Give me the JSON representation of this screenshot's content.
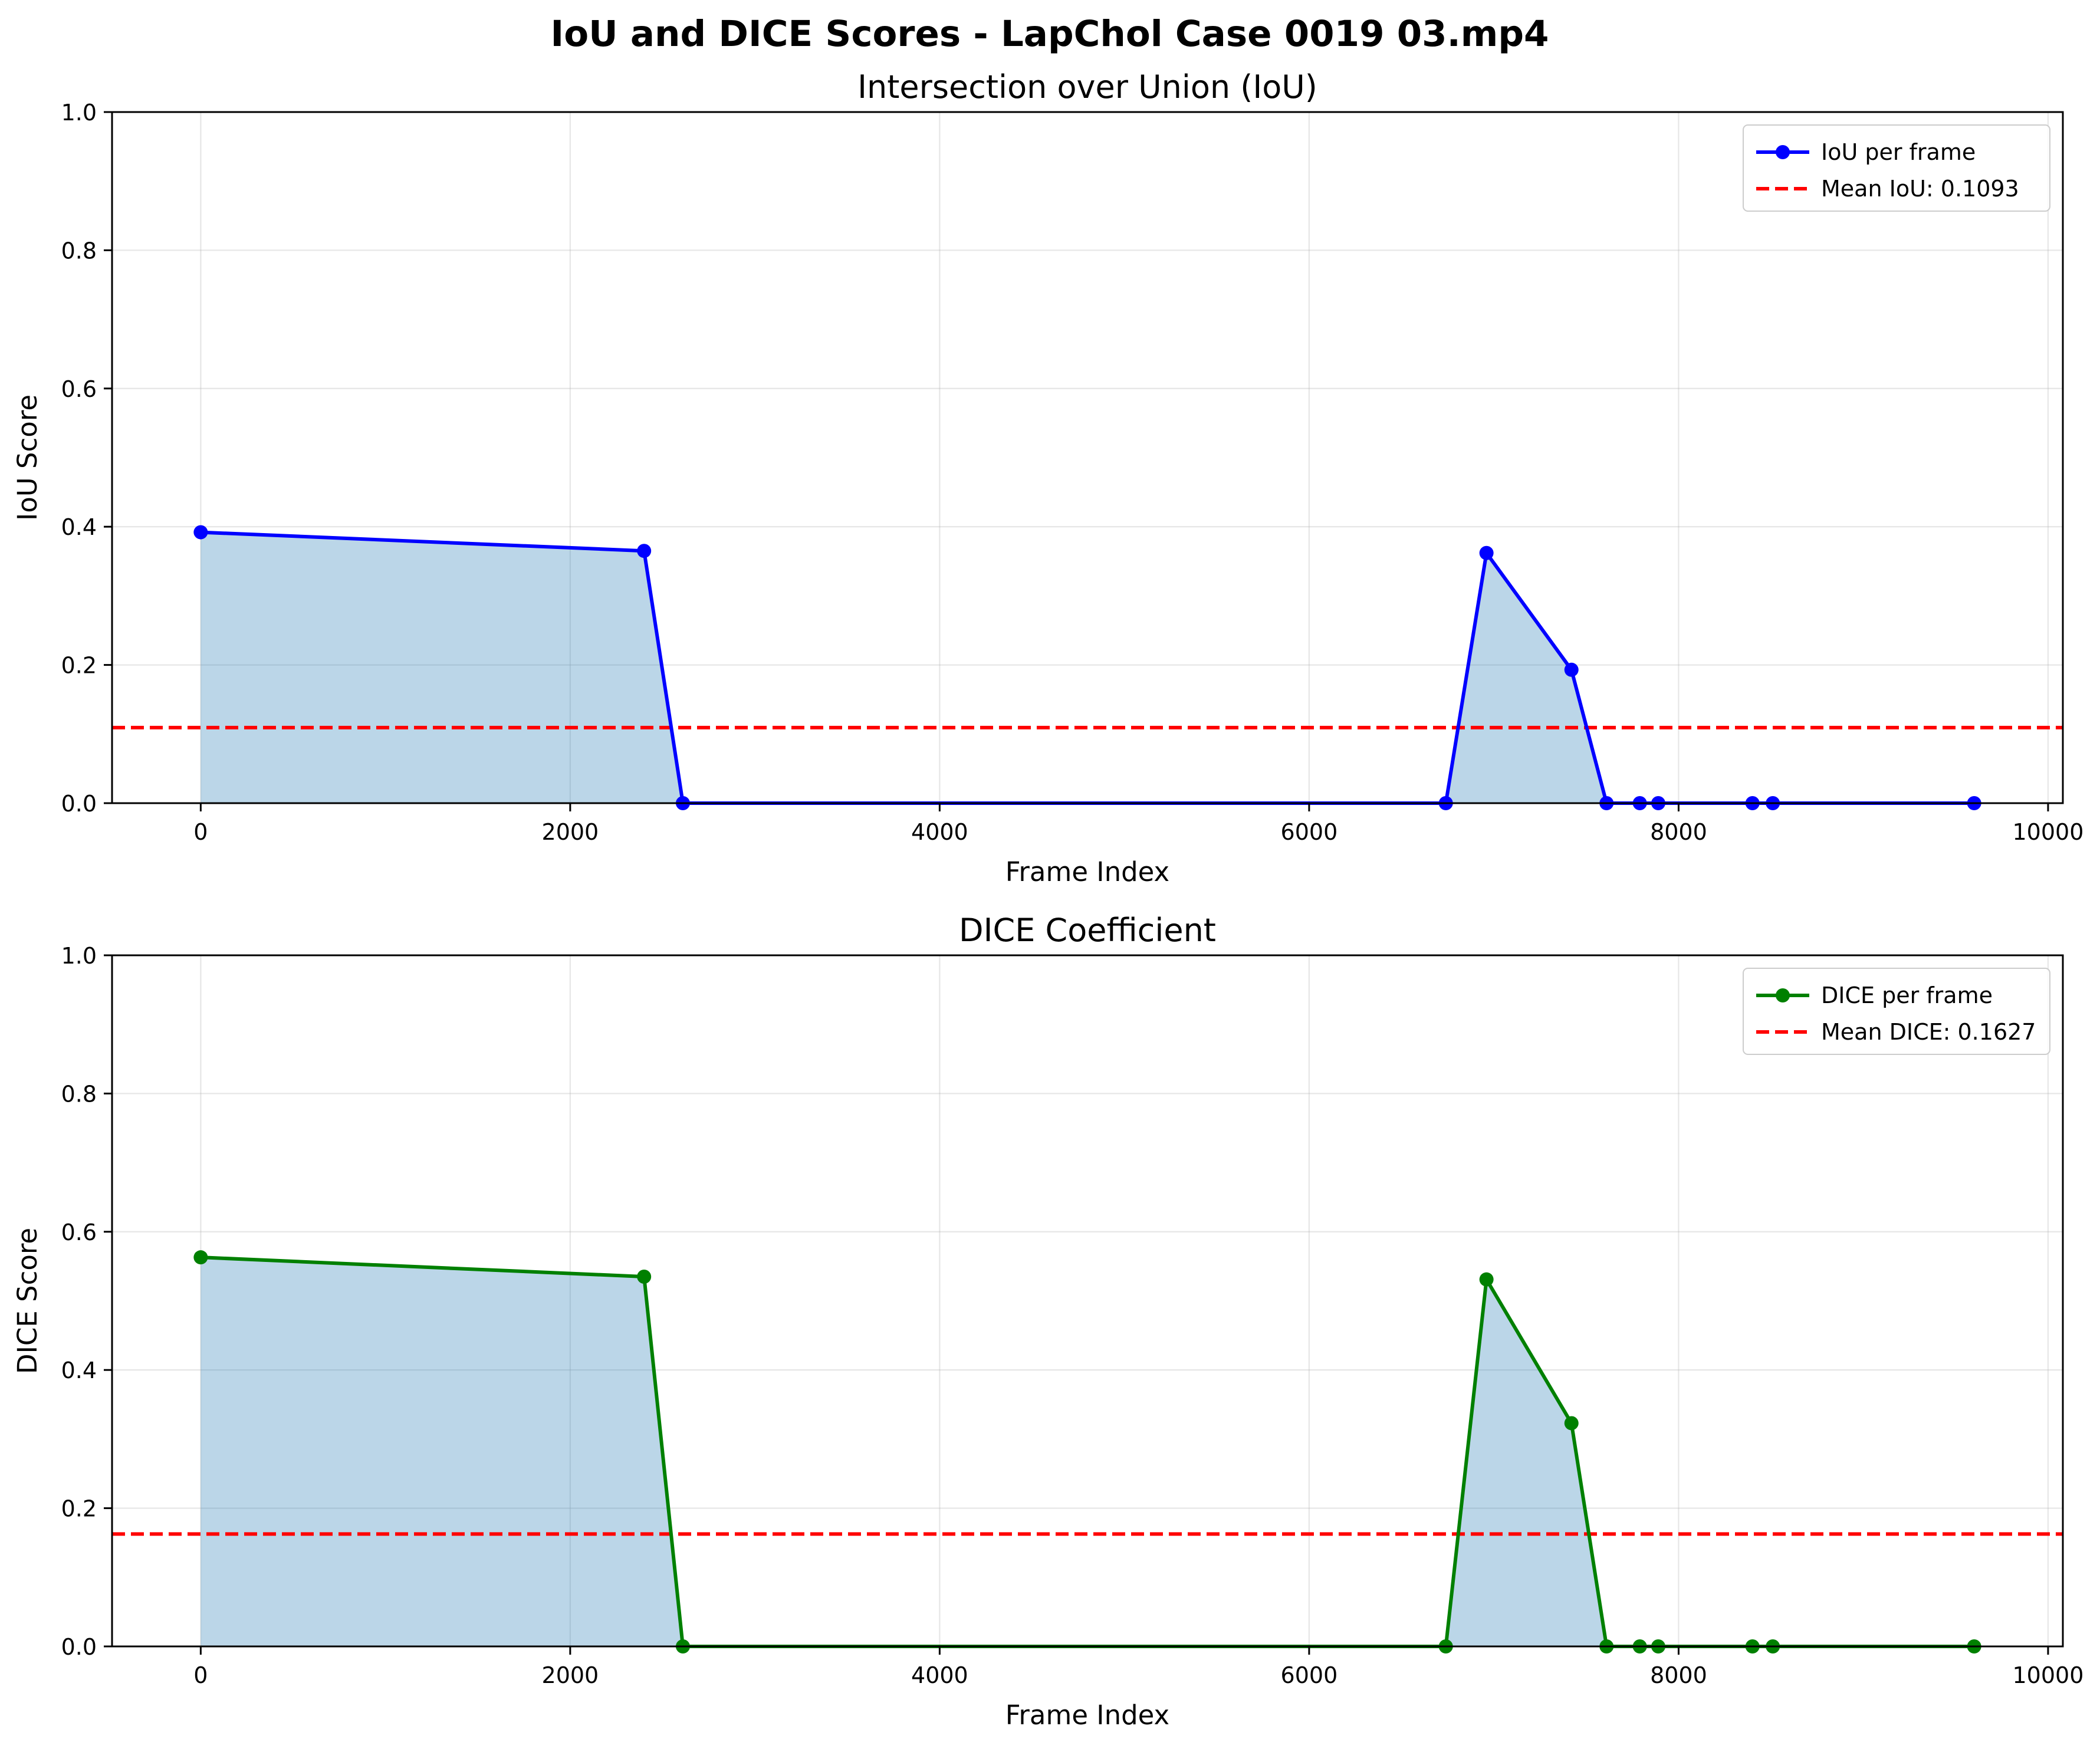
{
  "chart_data": {
    "title": "IoU and DICE Scores - LapChol Case 0019 03.mp4",
    "charts": [
      {
        "type": "line",
        "title": "Intersection over Union (IoU)",
        "xlabel": "Frame Index",
        "ylabel": "IoU Score",
        "xlim": [
          -480,
          10080
        ],
        "ylim": [
          0,
          1
        ],
        "xticks": [
          0,
          2000,
          4000,
          6000,
          8000,
          10000
        ],
        "yticks": [
          "0.0",
          "0.2",
          "0.4",
          "0.6",
          "0.8",
          "1.0"
        ],
        "grid": true,
        "legend_position": "upper right",
        "series": {
          "name": "IoU per frame",
          "color": "#0000ff",
          "fill_color": "#1f77b4",
          "x": [
            0,
            2400,
            2610,
            6740,
            6960,
            7420,
            7610,
            7790,
            7890,
            8400,
            8510,
            9600
          ],
          "y": [
            0.392,
            0.365,
            0.0,
            0.0,
            0.362,
            0.193,
            0.0,
            0.0,
            0.0,
            0.0,
            0.0,
            0.0
          ]
        },
        "mean": {
          "label": "Mean IoU: 0.1093",
          "value": 0.1093,
          "color": "#ff0000"
        }
      },
      {
        "type": "line",
        "title": "DICE Coefficient",
        "xlabel": "Frame Index",
        "ylabel": "DICE Score",
        "xlim": [
          -480,
          10080
        ],
        "ylim": [
          0,
          1
        ],
        "xticks": [
          0,
          2000,
          4000,
          6000,
          8000,
          10000
        ],
        "yticks": [
          "0.0",
          "0.2",
          "0.4",
          "0.6",
          "0.8",
          "1.0"
        ],
        "grid": true,
        "legend_position": "upper right",
        "series": {
          "name": "DICE per frame",
          "color": "#008000",
          "fill_color": "#1f77b4",
          "x": [
            0,
            2400,
            2610,
            6740,
            6960,
            7420,
            7610,
            7790,
            7890,
            8400,
            8510,
            9600
          ],
          "y": [
            0.563,
            0.535,
            0.0,
            0.0,
            0.531,
            0.323,
            0.0,
            0.0,
            0.0,
            0.0,
            0.0,
            0.0
          ]
        },
        "mean": {
          "label": "Mean DICE: 0.1627",
          "value": 0.1627,
          "color": "#ff0000"
        }
      }
    ]
  }
}
